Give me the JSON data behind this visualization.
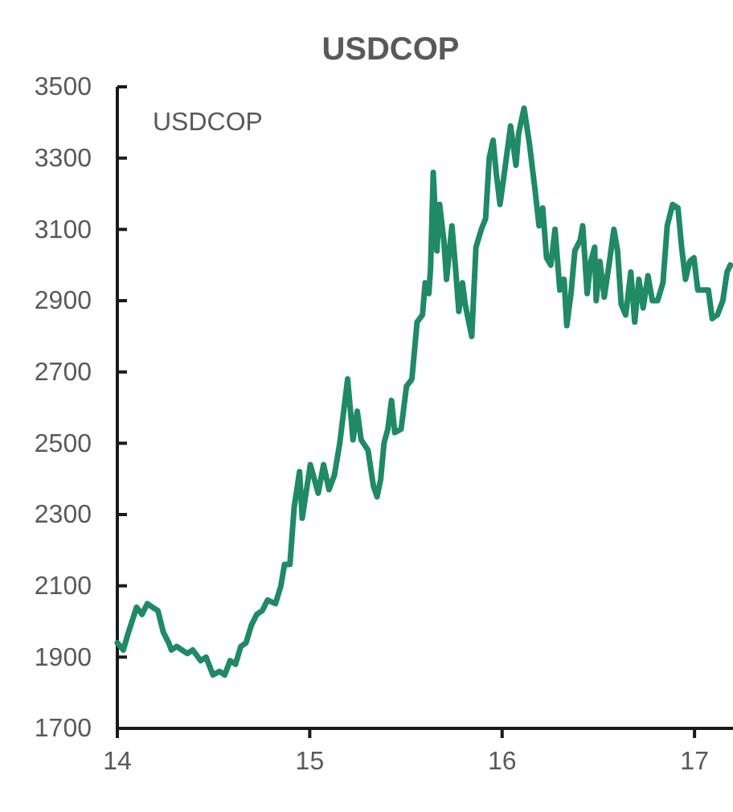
{
  "chart_data": {
    "type": "line",
    "title": "USDCOP",
    "x": [
      14.0,
      14.031,
      14.058,
      14.1,
      14.128,
      14.156,
      14.183,
      14.211,
      14.239,
      14.267,
      14.281,
      14.308,
      14.336,
      14.364,
      14.392,
      14.433,
      14.461,
      14.497,
      14.531,
      14.558,
      14.586,
      14.614,
      14.642,
      14.669,
      14.697,
      14.725,
      14.753,
      14.781,
      14.822,
      14.85,
      14.869,
      14.897,
      14.919,
      14.947,
      14.961,
      15.003,
      15.044,
      15.072,
      15.1,
      15.128,
      15.156,
      15.197,
      15.225,
      15.247,
      15.267,
      15.303,
      15.331,
      15.35,
      15.369,
      15.386,
      15.406,
      15.425,
      15.442,
      15.475,
      15.503,
      15.531,
      15.558,
      15.586,
      15.6,
      15.619,
      15.628,
      15.642,
      15.661,
      15.675,
      15.697,
      15.711,
      15.739,
      15.758,
      15.775,
      15.794,
      15.808,
      15.842,
      15.864,
      15.892,
      15.914,
      15.933,
      15.953,
      15.969,
      15.989,
      16.017,
      16.044,
      16.072,
      16.086,
      16.114,
      16.142,
      16.169,
      16.192,
      16.211,
      16.231,
      16.253,
      16.275,
      16.3,
      16.322,
      16.336,
      16.358,
      16.378,
      16.406,
      16.419,
      16.442,
      16.461,
      16.481,
      16.489,
      16.508,
      16.531,
      16.558,
      16.581,
      16.6,
      16.619,
      16.642,
      16.669,
      16.689,
      16.711,
      16.733,
      16.758,
      16.781,
      16.808,
      16.836,
      16.858,
      16.886,
      16.914,
      16.933,
      16.953,
      16.975,
      16.997,
      17.017,
      17.044,
      17.072,
      17.092,
      17.119,
      17.147,
      17.169,
      17.186
    ],
    "series": [
      {
        "name": "USDCOP",
        "color": "#1f8a64",
        "values": [
          1940,
          1920,
          1970,
          2040,
          2020,
          2050,
          2040,
          2030,
          1970,
          1940,
          1920,
          1930,
          1920,
          1910,
          1920,
          1890,
          1900,
          1850,
          1860,
          1850,
          1890,
          1880,
          1930,
          1940,
          1990,
          2020,
          2030,
          2060,
          2050,
          2100,
          2160,
          2160,
          2320,
          2420,
          2290,
          2440,
          2360,
          2440,
          2370,
          2410,
          2500,
          2680,
          2510,
          2590,
          2510,
          2480,
          2380,
          2350,
          2400,
          2500,
          2540,
          2620,
          2530,
          2540,
          2660,
          2680,
          2840,
          2860,
          2950,
          2920,
          2990,
          3260,
          3040,
          3170,
          3070,
          2960,
          3110,
          2990,
          2870,
          2950,
          2890,
          2800,
          3050,
          3100,
          3130,
          3300,
          3350,
          3260,
          3170,
          3280,
          3390,
          3280,
          3370,
          3440,
          3340,
          3220,
          3110,
          3160,
          3020,
          3000,
          3100,
          2930,
          2960,
          2830,
          2920,
          3040,
          3070,
          3110,
          2920,
          3010,
          3050,
          2900,
          3010,
          2910,
          3010,
          3100,
          3040,
          2890,
          2860,
          2980,
          2840,
          2960,
          2880,
          2970,
          2900,
          2900,
          2950,
          3110,
          3170,
          3160,
          3050,
          2960,
          3010,
          3020,
          2930,
          2930,
          2930,
          2850,
          2860,
          2900,
          2980,
          3000
        ]
      }
    ],
    "xlim": [
      14,
      17.2
    ],
    "xticks": [
      14,
      15,
      16,
      17
    ],
    "ylim": [
      1700,
      3500
    ],
    "yticks": [
      1700,
      1900,
      2100,
      2300,
      2500,
      2700,
      2900,
      3100,
      3300,
      3500
    ],
    "legend": "top left"
  }
}
